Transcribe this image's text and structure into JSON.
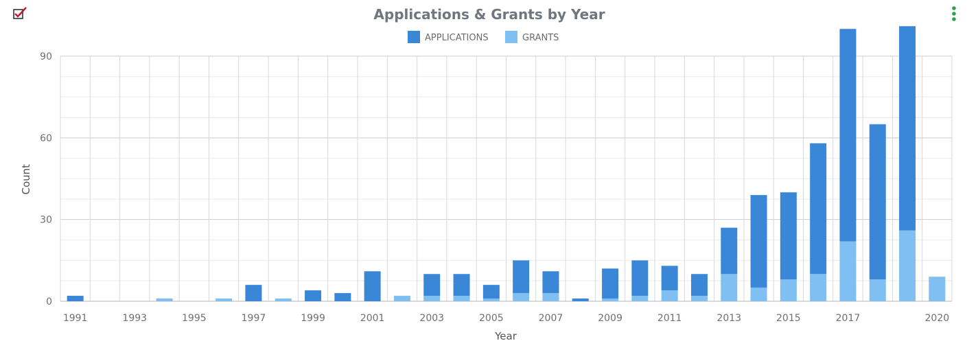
{
  "header": {
    "checkbox_icon": "checkbox-checked-icon",
    "menu_icon": "vertical-dots-menu-icon"
  },
  "colors": {
    "applications": "#3a87d8",
    "grants": "#7fbff2",
    "grid": "#d5d8dc",
    "menu_dots": "#2ca24a",
    "checkbox_mark": "#c0182a"
  },
  "chart_data": {
    "type": "bar",
    "title": "Applications & Grants by Year",
    "xlabel": "Year",
    "ylabel": "Count",
    "ylim": [
      0,
      90
    ],
    "yticks": [
      "0",
      "30",
      "60",
      "90"
    ],
    "grid": true,
    "legend_position": "top-center",
    "categories": [
      "1991",
      "1992",
      "1993",
      "1994",
      "1995",
      "1996",
      "1997",
      "1998",
      "1999",
      "2000",
      "2001",
      "2002",
      "2003",
      "2004",
      "2005",
      "2006",
      "2007",
      "2008",
      "2009",
      "2010",
      "2011",
      "2012",
      "2013",
      "2014",
      "2015",
      "2016",
      "2017",
      "2018",
      "2019",
      "2020"
    ],
    "xtick_labels": [
      "1991",
      "",
      "1993",
      "",
      "1995",
      "",
      "1997",
      "",
      "1999",
      "",
      "2001",
      "",
      "2003",
      "",
      "2005",
      "",
      "2007",
      "",
      "2009",
      "",
      "2011",
      "",
      "2013",
      "",
      "2015",
      "",
      "2017",
      "",
      "",
      "2020"
    ],
    "series": [
      {
        "name": "APPLICATIONS",
        "values": [
          2,
          0,
          0,
          0,
          0,
          0,
          6,
          0,
          4,
          3,
          11,
          0,
          8,
          8,
          5,
          12,
          8,
          1,
          11,
          13,
          9,
          8,
          17,
          34,
          32,
          48,
          78,
          57,
          75,
          0
        ]
      },
      {
        "name": "GRANTS",
        "values": [
          0,
          0,
          0,
          1,
          0,
          1,
          0,
          1,
          0,
          0,
          0,
          2,
          2,
          2,
          1,
          3,
          3,
          0,
          1,
          2,
          4,
          2,
          10,
          5,
          8,
          10,
          22,
          8,
          26,
          9
        ]
      }
    ]
  }
}
